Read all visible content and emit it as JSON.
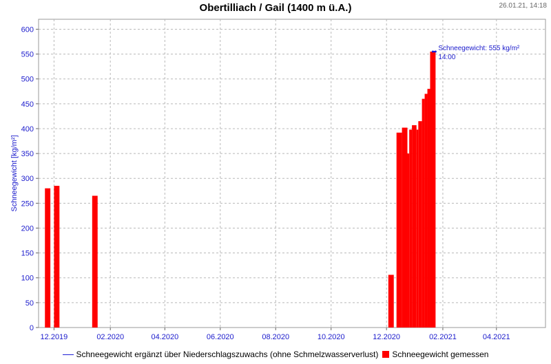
{
  "header": {
    "title": "Obertilliach / Gail (1400 m ü.A.)",
    "timestamp": "26.01.21, 14:18"
  },
  "legend": {
    "line_label": "Schneegewicht ergänzt über Niederschlagszuwachs (ohne Schmelzwasserverlust)",
    "bar_label": "Schneegewicht gemessen"
  },
  "chart_data": {
    "type": "bar",
    "title": "Obertilliach / Gail (1400 m ü.A.)",
    "xlabel": "",
    "ylabel": "Schneegewicht [kg/m²]",
    "ylim": [
      0,
      620
    ],
    "yticks": [
      0,
      50,
      100,
      150,
      200,
      250,
      300,
      350,
      400,
      450,
      500,
      550,
      600
    ],
    "xlim": [
      "2019-11-14",
      "2021-05-25"
    ],
    "xticks": [
      {
        "date": "2019-12-01",
        "label": "12.2019"
      },
      {
        "date": "2020-02-01",
        "label": "02.2020"
      },
      {
        "date": "2020-04-01",
        "label": "04.2020"
      },
      {
        "date": "2020-06-01",
        "label": "06.2020"
      },
      {
        "date": "2020-08-01",
        "label": "08.2020"
      },
      {
        "date": "2020-10-01",
        "label": "10.2020"
      },
      {
        "date": "2020-12-01",
        "label": "12.2020"
      },
      {
        "date": "2021-02-01",
        "label": "02.2021"
      },
      {
        "date": "2021-04-01",
        "label": "04.2021"
      }
    ],
    "grid": true,
    "legend_position": "bottom",
    "series": [
      {
        "name": "Schneegewicht gemessen",
        "color": "#ff0000",
        "points": [
          {
            "start": "2019-11-21",
            "end": "2019-11-27",
            "value": 280
          },
          {
            "start": "2019-12-01",
            "end": "2019-12-07",
            "value": 285
          },
          {
            "start": "2020-01-12",
            "end": "2020-01-18",
            "value": 265
          },
          {
            "start": "2020-12-03",
            "end": "2020-12-09",
            "value": 106
          },
          {
            "start": "2020-12-12",
            "end": "2020-12-18",
            "value": 392
          },
          {
            "start": "2020-12-18",
            "end": "2020-12-24",
            "value": 402
          },
          {
            "start": "2020-12-24",
            "end": "2020-12-26",
            "value": 350
          },
          {
            "start": "2020-12-26",
            "end": "2020-12-29",
            "value": 398
          },
          {
            "start": "2020-12-29",
            "end": "2021-01-03",
            "value": 407
          },
          {
            "start": "2021-01-03",
            "end": "2021-01-05",
            "value": 398
          },
          {
            "start": "2021-01-05",
            "end": "2021-01-09",
            "value": 415
          },
          {
            "start": "2021-01-09",
            "end": "2021-01-12",
            "value": 460
          },
          {
            "start": "2021-01-12",
            "end": "2021-01-15",
            "value": 470
          },
          {
            "start": "2021-01-15",
            "end": "2021-01-18",
            "value": 480
          },
          {
            "start": "2021-01-18",
            "end": "2021-01-24",
            "value": 555
          }
        ]
      },
      {
        "name": "Schneegewicht ergänzt über Niederschlagszuwachs (ohne Schmelzwasserverlust)",
        "color": "#1f1fd6",
        "points": [
          {
            "date": "2021-01-21",
            "value": 555
          },
          {
            "date": "2021-01-24",
            "value": 555
          }
        ]
      }
    ],
    "annotation": {
      "line1": "Schneegewicht: 555 kg/m²",
      "line2": "14:00",
      "date": "2021-01-24",
      "value": 555
    }
  }
}
